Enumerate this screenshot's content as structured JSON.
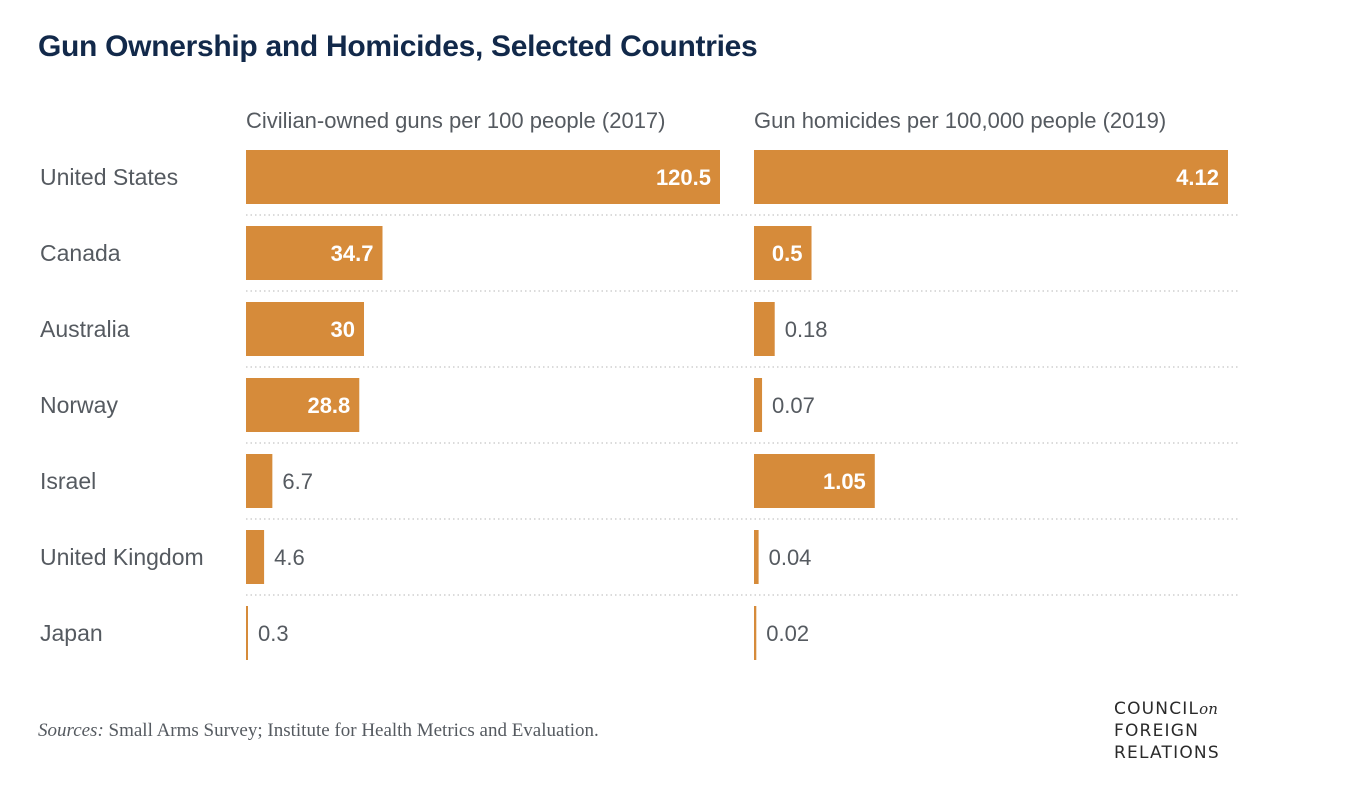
{
  "title": "Gun Ownership and Homicides, Selected Countries",
  "colors": {
    "bar": "#d68b3a",
    "title": "#12294a",
    "label_text": "#555a60",
    "inside_value_text": "#ffffff",
    "gridline": "#cfcfcf"
  },
  "chart_data": [
    {
      "type": "bar",
      "orientation": "horizontal",
      "title": "Civilian-owned guns per 100 people (2017)",
      "categories": [
        "United States",
        "Canada",
        "Australia",
        "Norway",
        "Israel",
        "United Kingdom",
        "Japan"
      ],
      "values": [
        120.5,
        34.7,
        30,
        28.8,
        6.7,
        4.6,
        0.3
      ],
      "value_labels": [
        "120.5",
        "34.7",
        "30",
        "28.8",
        "6.7",
        "4.6",
        "0.3"
      ],
      "xlim": [
        0,
        120.5
      ],
      "grid": false
    },
    {
      "type": "bar",
      "orientation": "horizontal",
      "title": "Gun homicides per 100,000 people (2019)",
      "categories": [
        "United States",
        "Canada",
        "Australia",
        "Norway",
        "Israel",
        "United Kingdom",
        "Japan"
      ],
      "values": [
        4.12,
        0.5,
        0.18,
        0.07,
        1.05,
        0.04,
        0.02
      ],
      "value_labels": [
        "4.12",
        "0.5",
        "0.18",
        "0.07",
        "1.05",
        "0.04",
        "0.02"
      ],
      "xlim": [
        0,
        4.12
      ],
      "grid": false
    }
  ],
  "footer": {
    "sources_lead": "Sources:",
    "sources_text": " Small Arms Survey; Institute for Health Metrics and Evaluation."
  },
  "logo": {
    "line1": "COUNCIL",
    "line1_suffix": "on",
    "line2": "FOREIGN",
    "line3": "RELATIONS"
  }
}
